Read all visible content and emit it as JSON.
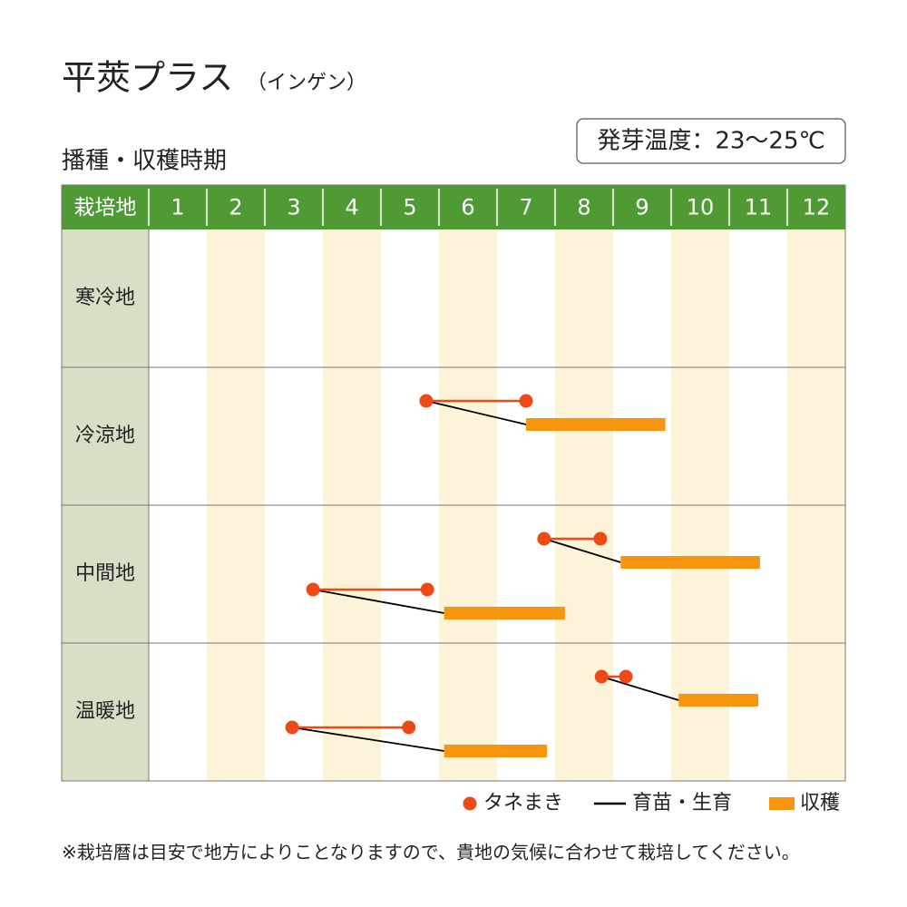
{
  "chart_data": {
    "type": "gantt",
    "title": "平莢プラス",
    "subtitle": "（インゲン）",
    "note": "発芽温度：23〜25℃",
    "section_title": "播種・収穫時期",
    "row_header": "栽培地",
    "months": [
      "1",
      "2",
      "3",
      "4",
      "5",
      "6",
      "7",
      "8",
      "9",
      "10",
      "11",
      "12"
    ],
    "xlim": [
      1,
      13
    ],
    "rows": [
      {
        "name": "寒冷地",
        "plans": []
      },
      {
        "name": "冷涼地",
        "plans": [
          {
            "sowing": [
              5.78,
              7.5
            ],
            "harvest": [
              7.5,
              9.9
            ]
          }
        ]
      },
      {
        "name": "中間地",
        "plans": [
          {
            "sowing": [
              7.81,
              8.78
            ],
            "harvest": [
              9.13,
              11.53
            ]
          },
          {
            "sowing": [
              3.83,
              5.8
            ],
            "harvest": [
              6.09,
              8.17
            ]
          }
        ]
      },
      {
        "name": "温暖地",
        "plans": [
          {
            "sowing": [
              8.8,
              9.22
            ],
            "harvest": [
              10.13,
              11.5
            ]
          },
          {
            "sowing": [
              3.47,
              5.48
            ],
            "harvest": [
              6.09,
              7.86
            ]
          }
        ]
      }
    ],
    "legend": {
      "sowing": "タネまき",
      "growing": "育苗・生育",
      "harvest": "収穫"
    },
    "colors": {
      "sowing": "#f04a14",
      "growing": "#000000",
      "harvest": "#f7950f"
    },
    "footnote": "※栽培暦は目安で地方によりことなりますので、貴地の気候に合わせて栽培してください。"
  }
}
